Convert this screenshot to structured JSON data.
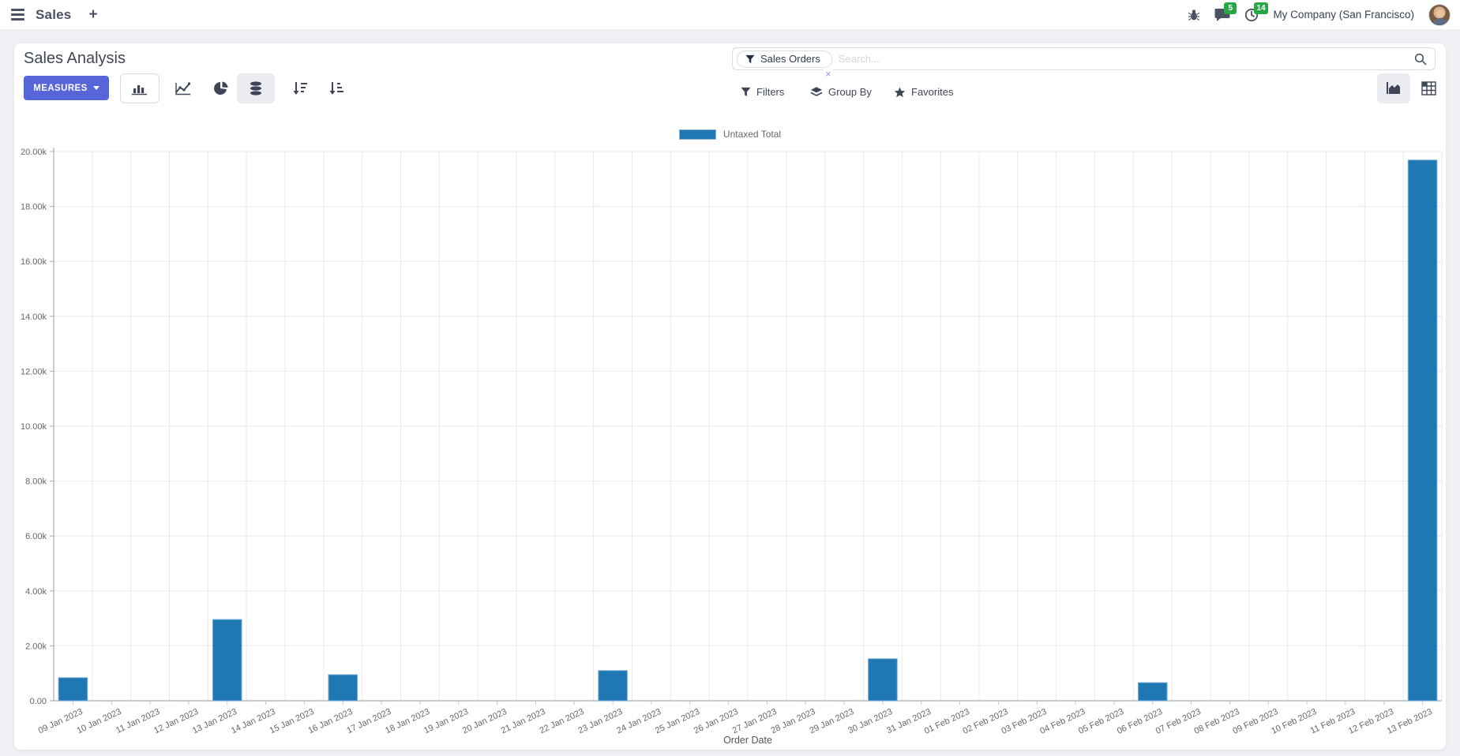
{
  "navbar": {
    "app_name": "Sales",
    "plus_label": "+",
    "messages_badge": "5",
    "activities_badge": "14",
    "company": "My Company (San Francisco)"
  },
  "control_panel": {
    "title": "Sales Analysis",
    "measures_label": "MEASURES",
    "filters_label": "Filters",
    "group_by_label": "Group By",
    "favorites_label": "Favorites",
    "search_facet": "Sales Orders",
    "search_placeholder": "Search...",
    "facet_remove_label": "×"
  },
  "colors": {
    "accent": "#5666d8",
    "badge_green": "#28a745",
    "bar_fill": "#1f77b4",
    "bar_border": "#7ab1d8",
    "grid_line": "#e9e9e9",
    "axis_line": "#a8adb3",
    "tick_text": "#666666"
  },
  "chart_data": {
    "type": "bar",
    "title": "",
    "xlabel": "Order Date",
    "ylabel": "",
    "ylim": [
      0,
      20000
    ],
    "y_tick_step": 2000,
    "y_tick_labels": [
      "0.00",
      "2.00k",
      "4.00k",
      "6.00k",
      "8.00k",
      "10.00k",
      "12.00k",
      "14.00k",
      "16.00k",
      "18.00k",
      "20.00k"
    ],
    "grid": true,
    "legend_position": "top",
    "legend": [
      {
        "label": "Untaxed Total",
        "color": "#1f77b4"
      }
    ],
    "categories": [
      "09 Jan 2023",
      "10 Jan 2023",
      "11 Jan 2023",
      "12 Jan 2023",
      "13 Jan 2023",
      "14 Jan 2023",
      "15 Jan 2023",
      "16 Jan 2023",
      "17 Jan 2023",
      "18 Jan 2023",
      "19 Jan 2023",
      "20 Jan 2023",
      "21 Jan 2023",
      "22 Jan 2023",
      "23 Jan 2023",
      "24 Jan 2023",
      "25 Jan 2023",
      "26 Jan 2023",
      "27 Jan 2023",
      "28 Jan 2023",
      "29 Jan 2023",
      "30 Jan 2023",
      "31 Jan 2023",
      "01 Feb 2023",
      "02 Feb 2023",
      "03 Feb 2023",
      "04 Feb 2023",
      "05 Feb 2023",
      "06 Feb 2023",
      "07 Feb 2023",
      "08 Feb 2023",
      "09 Feb 2023",
      "10 Feb 2023",
      "11 Feb 2023",
      "12 Feb 2023",
      "13 Feb 2023"
    ],
    "series": [
      {
        "name": "Untaxed Total",
        "values": [
          840,
          0,
          0,
          0,
          2960,
          0,
          0,
          950,
          0,
          0,
          0,
          0,
          0,
          0,
          1100,
          0,
          0,
          0,
          0,
          0,
          0,
          1530,
          0,
          0,
          0,
          0,
          0,
          0,
          660,
          0,
          0,
          0,
          0,
          0,
          0,
          19690
        ]
      }
    ]
  }
}
